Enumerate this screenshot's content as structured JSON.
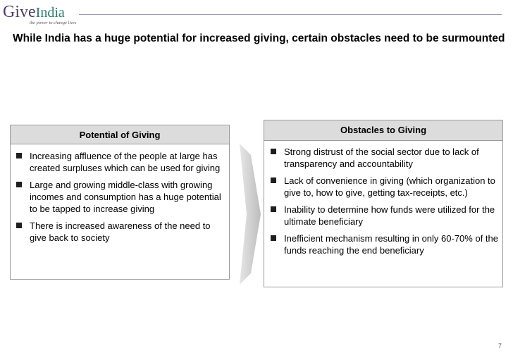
{
  "logo": {
    "brand_give": "Give",
    "brand_india": "India",
    "tagline": "the power to change lives"
  },
  "headline": "While India has a huge potential for  increased giving, certain obstacles need to be surmounted",
  "left_panel": {
    "title": "Potential of Giving",
    "bullets": [
      "Increasing affluence of the people at large has created surpluses which can be used for giving",
      "Large and growing middle-class with growing incomes and consumption has a huge potential to be tapped to increase giving",
      "There is increased awareness of the need to give back to society"
    ]
  },
  "right_panel": {
    "title": "Obstacles to Giving",
    "bullets": [
      "Strong distrust of the social sector due to lack of transparency and accountability",
      "Lack of convenience in giving (which organization to give to, how to give, getting tax-receipts, etc.)",
      "Inability to determine how funds were utilized for the ultimate beneficiary",
      "Inefficient mechanism resulting in only 60-70% of the funds reaching the end beneficiary"
    ]
  },
  "page_number": "7",
  "colors": {
    "panel_header": "#dcdcdc",
    "arrow": "#c8c8c8",
    "logo_purple": "#4a3f6b",
    "logo_teal": "#2f7a6a"
  }
}
